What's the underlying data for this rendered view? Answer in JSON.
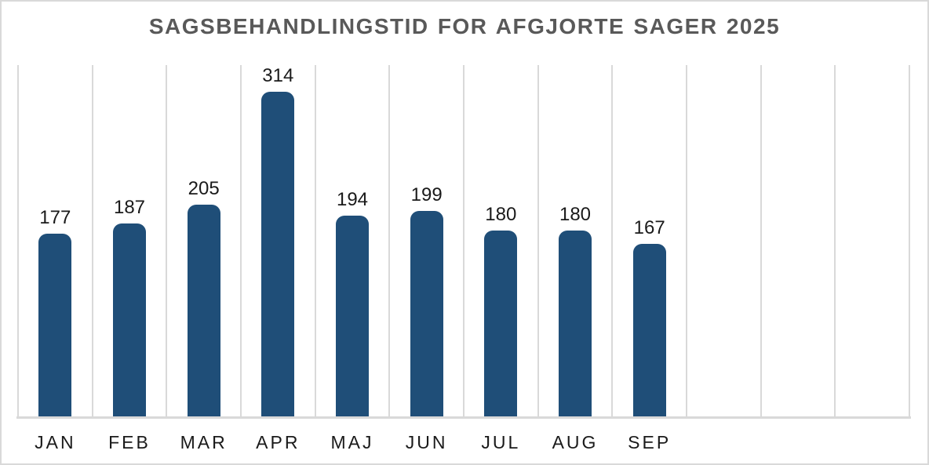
{
  "chart_data": {
    "type": "bar",
    "title": "SAGSBEHANDLINGSTID FOR AFGJORTE SAGER 2025",
    "categories": [
      "JAN",
      "FEB",
      "MAR",
      "APR",
      "MAJ",
      "JUN",
      "JUL",
      "AUG",
      "SEP"
    ],
    "values": [
      177,
      187,
      205,
      314,
      194,
      199,
      180,
      180,
      167
    ],
    "data_labels": true,
    "xlabel": "",
    "ylabel": "",
    "ylim": [
      0,
      340
    ],
    "total_category_slots": 12,
    "grid": "vertical",
    "legend": "none",
    "colors": {
      "bar": "#1f4e78",
      "gridline": "#d9d9d9",
      "axis_line": "#d9d9d9",
      "title": "#595959",
      "label": "#1a1a1a",
      "background": "#ffffff",
      "frame_border": "#d9d9d9"
    }
  }
}
